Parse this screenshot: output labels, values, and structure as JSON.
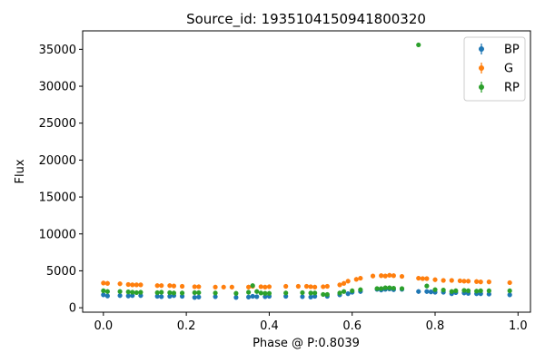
{
  "chart_data": {
    "type": "scatter",
    "title": "Source_id: 1935104150941800320",
    "xlabel": "Phase @ P:0.8039",
    "ylabel": "Flux",
    "xlim": [
      -0.05,
      1.03
    ],
    "ylim": [
      -600,
      37500
    ],
    "xticks": [
      "0.0",
      "0.2",
      "0.4",
      "0.6",
      "0.8",
      "1.0"
    ],
    "yticks": [
      "0",
      "5000",
      "10000",
      "15000",
      "20000",
      "25000",
      "30000",
      "35000"
    ],
    "legend_position": "top-right",
    "grid": false,
    "series": [
      {
        "name": "BP",
        "color": "#1f77b4",
        "points": [
          [
            0.0,
            1750
          ],
          [
            0.01,
            1600
          ],
          [
            0.04,
            1650
          ],
          [
            0.06,
            1600
          ],
          [
            0.07,
            1650
          ],
          [
            0.09,
            1650
          ],
          [
            0.13,
            1550
          ],
          [
            0.14,
            1500
          ],
          [
            0.16,
            1550
          ],
          [
            0.17,
            1650
          ],
          [
            0.19,
            1550
          ],
          [
            0.22,
            1400
          ],
          [
            0.23,
            1450
          ],
          [
            0.27,
            1500
          ],
          [
            0.32,
            1400
          ],
          [
            0.35,
            1450
          ],
          [
            0.36,
            1550
          ],
          [
            0.37,
            1500
          ],
          [
            0.39,
            1500
          ],
          [
            0.4,
            1550
          ],
          [
            0.44,
            1550
          ],
          [
            0.48,
            1500
          ],
          [
            0.5,
            1450
          ],
          [
            0.51,
            1550
          ],
          [
            0.54,
            1550
          ],
          [
            0.57,
            1750
          ],
          [
            0.59,
            1900
          ],
          [
            0.6,
            2100
          ],
          [
            0.62,
            2200
          ],
          [
            0.66,
            2500
          ],
          [
            0.67,
            2400
          ],
          [
            0.68,
            2500
          ],
          [
            0.69,
            2550
          ],
          [
            0.7,
            2450
          ],
          [
            0.72,
            2500
          ],
          [
            0.76,
            2200
          ],
          [
            0.78,
            2200
          ],
          [
            0.79,
            2150
          ],
          [
            0.8,
            2100
          ],
          [
            0.82,
            2100
          ],
          [
            0.84,
            1900
          ],
          [
            0.85,
            2050
          ],
          [
            0.87,
            2000
          ],
          [
            0.88,
            1950
          ],
          [
            0.9,
            1900
          ],
          [
            0.91,
            1900
          ],
          [
            0.93,
            1850
          ],
          [
            0.98,
            1750
          ]
        ]
      },
      {
        "name": "G",
        "color": "#ff7f0e",
        "points": [
          [
            0.0,
            3350
          ],
          [
            0.01,
            3300
          ],
          [
            0.04,
            3250
          ],
          [
            0.06,
            3150
          ],
          [
            0.07,
            3100
          ],
          [
            0.08,
            3100
          ],
          [
            0.09,
            3100
          ],
          [
            0.13,
            3000
          ],
          [
            0.14,
            3000
          ],
          [
            0.16,
            3000
          ],
          [
            0.17,
            2950
          ],
          [
            0.19,
            2900
          ],
          [
            0.22,
            2850
          ],
          [
            0.23,
            2850
          ],
          [
            0.27,
            2800
          ],
          [
            0.29,
            2800
          ],
          [
            0.31,
            2800
          ],
          [
            0.35,
            2800
          ],
          [
            0.36,
            2900
          ],
          [
            0.38,
            2850
          ],
          [
            0.39,
            2800
          ],
          [
            0.4,
            2850
          ],
          [
            0.44,
            2900
          ],
          [
            0.47,
            2900
          ],
          [
            0.49,
            2900
          ],
          [
            0.5,
            2850
          ],
          [
            0.51,
            2800
          ],
          [
            0.53,
            2850
          ],
          [
            0.54,
            2900
          ],
          [
            0.57,
            3100
          ],
          [
            0.58,
            3300
          ],
          [
            0.59,
            3600
          ],
          [
            0.61,
            3850
          ],
          [
            0.62,
            4000
          ],
          [
            0.65,
            4300
          ],
          [
            0.67,
            4350
          ],
          [
            0.68,
            4300
          ],
          [
            0.69,
            4400
          ],
          [
            0.7,
            4350
          ],
          [
            0.72,
            4250
          ],
          [
            0.76,
            4000
          ],
          [
            0.77,
            3950
          ],
          [
            0.78,
            3950
          ],
          [
            0.8,
            3800
          ],
          [
            0.82,
            3700
          ],
          [
            0.84,
            3700
          ],
          [
            0.86,
            3650
          ],
          [
            0.87,
            3600
          ],
          [
            0.88,
            3600
          ],
          [
            0.9,
            3550
          ],
          [
            0.91,
            3500
          ],
          [
            0.93,
            3500
          ],
          [
            0.98,
            3400
          ]
        ]
      },
      {
        "name": "RP",
        "color": "#2ca02c",
        "points": [
          [
            0.0,
            2300
          ],
          [
            0.01,
            2200
          ],
          [
            0.04,
            2200
          ],
          [
            0.06,
            2150
          ],
          [
            0.07,
            2100
          ],
          [
            0.08,
            2050
          ],
          [
            0.09,
            2100
          ],
          [
            0.13,
            2050
          ],
          [
            0.14,
            2100
          ],
          [
            0.16,
            2050
          ],
          [
            0.17,
            2000
          ],
          [
            0.19,
            2000
          ],
          [
            0.22,
            2050
          ],
          [
            0.23,
            2050
          ],
          [
            0.27,
            2000
          ],
          [
            0.32,
            1950
          ],
          [
            0.35,
            2100
          ],
          [
            0.36,
            3000
          ],
          [
            0.37,
            2200
          ],
          [
            0.38,
            2000
          ],
          [
            0.39,
            1950
          ],
          [
            0.4,
            1950
          ],
          [
            0.44,
            2000
          ],
          [
            0.48,
            2050
          ],
          [
            0.5,
            2000
          ],
          [
            0.51,
            2000
          ],
          [
            0.53,
            1800
          ],
          [
            0.54,
            1800
          ],
          [
            0.57,
            2000
          ],
          [
            0.58,
            2200
          ],
          [
            0.6,
            2300
          ],
          [
            0.62,
            2450
          ],
          [
            0.66,
            2600
          ],
          [
            0.67,
            2600
          ],
          [
            0.68,
            2700
          ],
          [
            0.69,
            2700
          ],
          [
            0.7,
            2650
          ],
          [
            0.72,
            2600
          ],
          [
            0.76,
            35600
          ],
          [
            0.78,
            2950
          ],
          [
            0.8,
            2450
          ],
          [
            0.82,
            2400
          ],
          [
            0.84,
            2200
          ],
          [
            0.85,
            2300
          ],
          [
            0.87,
            2350
          ],
          [
            0.88,
            2300
          ],
          [
            0.9,
            2250
          ],
          [
            0.91,
            2300
          ],
          [
            0.93,
            2300
          ],
          [
            0.98,
            2300
          ]
        ]
      }
    ]
  }
}
